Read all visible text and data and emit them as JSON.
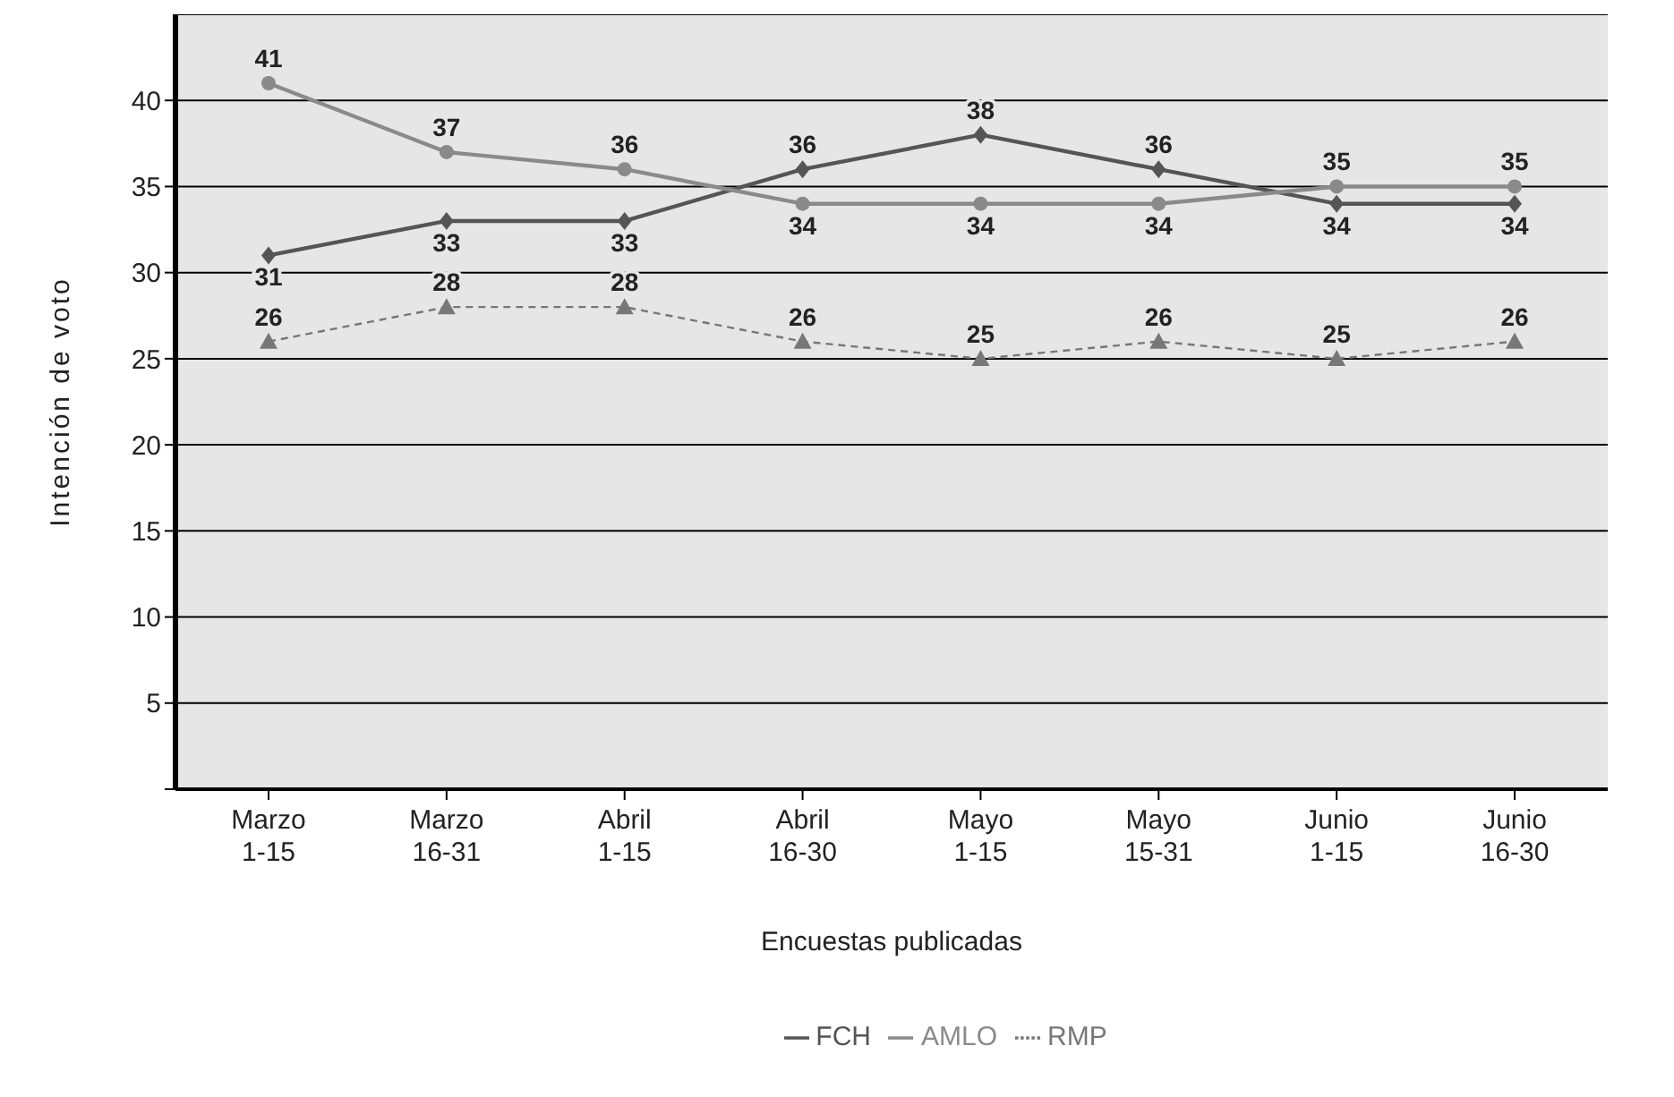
{
  "chart_data": {
    "type": "line",
    "xlabel": "Encuestas publicadas",
    "ylabel": "Intención de voto",
    "categories": [
      "Marzo\n1-15",
      "Marzo\n16-31",
      "Abril\n1-15",
      "Abril\n16-30",
      "Mayo\n1-15",
      "Mayo\n15-31",
      "Junio\n1-15",
      "Junio\n16-30"
    ],
    "series": [
      {
        "name": "FCH",
        "color": "#555555",
        "marker": "diamond",
        "line_style": "solid",
        "values": [
          31,
          33,
          33,
          36,
          38,
          36,
          34,
          34
        ]
      },
      {
        "name": "AMLO",
        "color": "#8a8a8a",
        "marker": "circle",
        "line_style": "solid",
        "values": [
          41,
          37,
          36,
          34,
          34,
          34,
          35,
          35
        ]
      },
      {
        "name": "RMP",
        "color": "#777777",
        "marker": "triangle",
        "line_style": "dashed",
        "values": [
          26,
          28,
          28,
          26,
          25,
          26,
          25,
          26
        ]
      }
    ],
    "ylim": [
      0,
      45
    ],
    "yticks": [
      {
        "value": 0,
        "label": null
      },
      5,
      10,
      15,
      20,
      25,
      30,
      35,
      40
    ],
    "grid": "y",
    "legend": "bottom",
    "data_labels": true
  }
}
